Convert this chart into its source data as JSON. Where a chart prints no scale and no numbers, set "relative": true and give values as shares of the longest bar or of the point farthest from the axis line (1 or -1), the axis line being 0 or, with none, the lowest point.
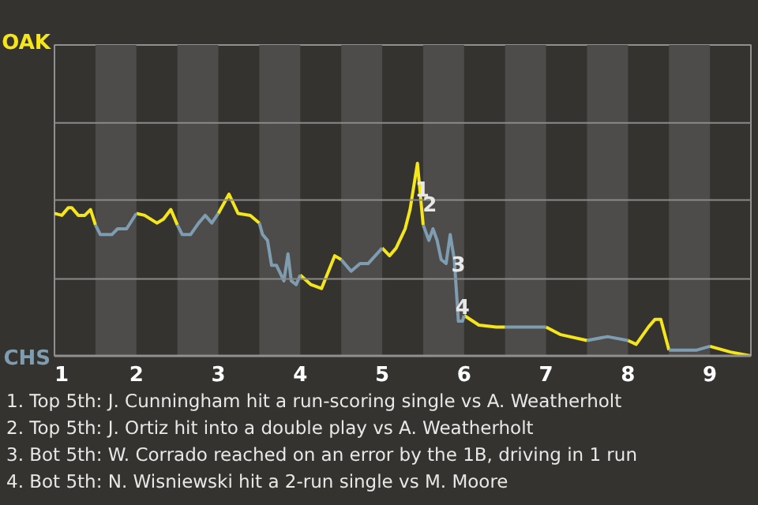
{
  "chart_data": {
    "type": "line",
    "relative": true,
    "xlim": [
      1,
      9.5
    ],
    "xticks": [
      1,
      2,
      3,
      4,
      5,
      6,
      7,
      8,
      9
    ],
    "line_style": "solid",
    "ref_lines": [
      {
        "axis": "y",
        "value": 0.4,
        "color": "#8a8a8a"
      },
      {
        "axis": "y",
        "value": 0.81,
        "color": "#8a8a8a"
      },
      {
        "axis": "y",
        "value": 1.21,
        "color": "#8a8a8a"
      }
    ],
    "series": [
      {
        "color": "#f5e51b",
        "x": [
          1,
          1.09,
          1.17,
          1.21,
          1.29,
          1.37,
          1.44,
          1.5,
          null,
          2,
          2.1,
          2.25,
          2.33,
          2.42,
          2.5,
          null,
          3,
          3.13,
          3.24,
          3.39,
          3.5,
          null,
          4,
          4.13,
          4.26,
          4.42,
          4.5,
          null,
          5,
          5.09,
          5.17,
          5.28,
          5.34,
          5.43,
          5.5,
          null,
          6,
          6.18,
          6.39,
          6.5,
          null,
          7,
          7.18,
          7.5,
          null,
          8,
          8.1,
          8.25,
          8.33,
          8.4,
          8.5,
          null,
          9,
          9.25,
          9.5
        ],
        "values": [
          0.74,
          0.73,
          0.77,
          0.77,
          0.73,
          0.73,
          0.76,
          0.68,
          null,
          0.74,
          0.73,
          0.69,
          0.71,
          0.76,
          0.68,
          null,
          0.74,
          0.84,
          0.74,
          0.73,
          0.69,
          null,
          0.42,
          0.37,
          0.35,
          0.52,
          0.5,
          null,
          0.56,
          0.52,
          0.56,
          0.66,
          0.76,
          1,
          0.68,
          null,
          0.21,
          0.16,
          0.15,
          0.15,
          null,
          0.15,
          0.11,
          0.08,
          null,
          0.08,
          0.06,
          0.15,
          0.19,
          0.19,
          0.03,
          null,
          0.05,
          0.02,
          0
        ]
      },
      {
        "color": "#7f9db0",
        "x": [
          1.5,
          1.56,
          1.7,
          1.77,
          1.88,
          2,
          null,
          2.5,
          2.56,
          2.66,
          2.76,
          2.84,
          2.92,
          3,
          null,
          3.5,
          3.54,
          3.6,
          3.65,
          3.71,
          3.8,
          3.85,
          3.89,
          3.95,
          4,
          null,
          4.5,
          4.62,
          4.73,
          4.83,
          5,
          null,
          5.5,
          5.57,
          5.62,
          5.67,
          5.72,
          5.78,
          5.83,
          5.88,
          5.93,
          5.98,
          6,
          null,
          6.5,
          6.75,
          7,
          null,
          7.5,
          7.75,
          8,
          null,
          8.5,
          8.84,
          9
        ],
        "values": [
          0.68,
          0.63,
          0.63,
          0.66,
          0.66,
          0.74,
          null,
          0.68,
          0.63,
          0.63,
          0.69,
          0.73,
          0.69,
          0.74,
          null,
          0.69,
          0.63,
          0.6,
          0.47,
          0.47,
          0.39,
          0.53,
          0.39,
          0.37,
          0.42,
          null,
          0.5,
          0.44,
          0.48,
          0.48,
          0.56,
          null,
          0.68,
          0.6,
          0.66,
          0.6,
          0.5,
          0.48,
          0.63,
          0.5,
          0.18,
          0.18,
          0.21,
          null,
          0.15,
          0.15,
          0.15,
          null,
          0.08,
          0.1,
          0.08,
          null,
          0.03,
          0.03,
          0.05
        ]
      }
    ],
    "bands": [
      {
        "axis": "x",
        "from": 1.5,
        "to": 2,
        "color": "#4d4c4a"
      },
      {
        "axis": "x",
        "from": 2.5,
        "to": 3,
        "color": "#4d4c4a"
      },
      {
        "axis": "x",
        "from": 3.5,
        "to": 4,
        "color": "#4d4c4a"
      },
      {
        "axis": "x",
        "from": 4.5,
        "to": 5,
        "color": "#4d4c4a"
      },
      {
        "axis": "x",
        "from": 5.5,
        "to": 6,
        "color": "#4d4c4a"
      },
      {
        "axis": "x",
        "from": 6.5,
        "to": 7,
        "color": "#4d4c4a"
      },
      {
        "axis": "x",
        "from": 7.5,
        "to": 8,
        "color": "#4d4c4a"
      },
      {
        "axis": "x",
        "from": 8.5,
        "to": 9,
        "color": "#4d4c4a"
      }
    ],
    "annotations": [
      {
        "text": "1",
        "x": 5.49,
        "y": 0.87
      },
      {
        "text": "2",
        "x": 5.58,
        "y": 0.79
      },
      {
        "text": "3",
        "x": 5.93,
        "y": 0.48
      },
      {
        "text": "4",
        "x": 5.98,
        "y": 0.26
      },
      "OAK",
      "CHS",
      "1. Top 5th: J. Cunningham hit a run-scoring single vs A. Weatherholt",
      "2. Top 5th: J. Ortiz hit into a double play vs A. Weatherholt",
      "3. Bot 5th: W. Corrado reached on an error by the 1B, driving in 1 run",
      "4. Bot 5th: N. Wisniewski hit a 2-run single vs M. Moore"
    ]
  }
}
